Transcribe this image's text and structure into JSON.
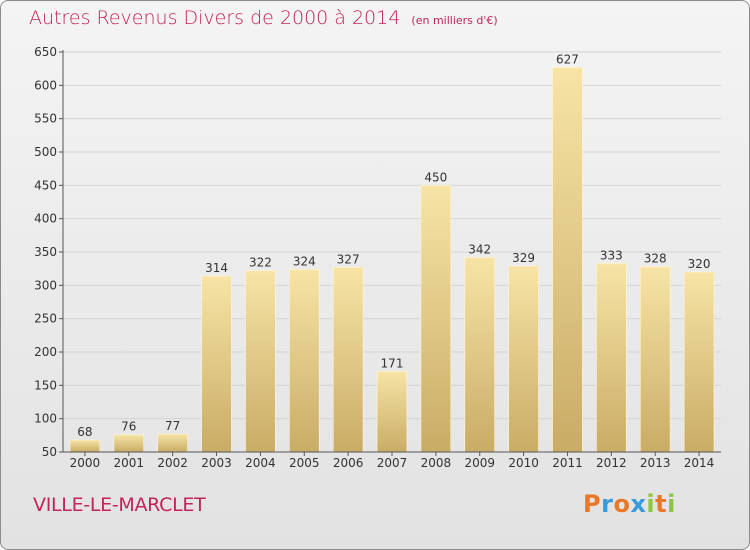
{
  "title": "Autres Revenus Divers de 2000 à 2014",
  "subtitle": "(en milliers d'€)",
  "location": "VILLE-LE-MARCLET",
  "logo": {
    "text": "Proxiti",
    "colors": [
      "#e8792a",
      "#3a9ad9",
      "#e8792a",
      "#3a9ad9",
      "#8dc63f",
      "#e8792a",
      "#8dc63f"
    ]
  },
  "colors": {
    "title": "#c0245c",
    "bar_light": "#f7e4a6",
    "bar_dark": "#c9ac66",
    "grid": "#d4d4d4"
  },
  "chart_data": {
    "type": "bar",
    "categories": [
      "2000",
      "2001",
      "2002",
      "2003",
      "2004",
      "2005",
      "2006",
      "2007",
      "2008",
      "2009",
      "2010",
      "2011",
      "2012",
      "2013",
      "2014"
    ],
    "values": [
      68,
      76,
      77,
      314,
      322,
      324,
      327,
      171,
      450,
      342,
      329,
      627,
      333,
      328,
      320
    ],
    "ylim": [
      50,
      650
    ],
    "yticks": [
      50,
      100,
      150,
      200,
      250,
      300,
      350,
      400,
      450,
      500,
      550,
      600,
      650
    ],
    "grid": true,
    "data_labels": true
  }
}
